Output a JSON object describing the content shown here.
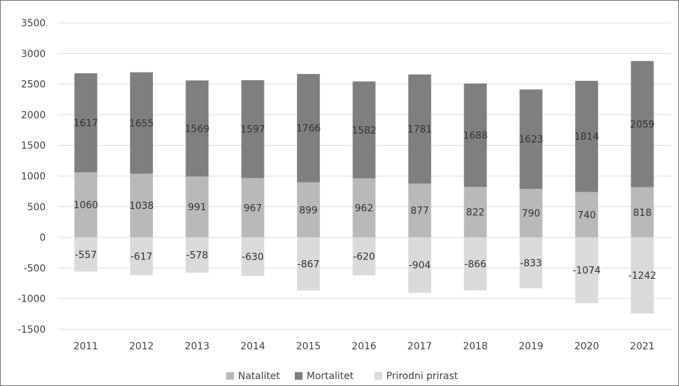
{
  "chart_data": {
    "type": "bar",
    "stacked": true,
    "categories": [
      "2011",
      "2012",
      "2013",
      "2014",
      "2015",
      "2016",
      "2017",
      "2018",
      "2019",
      "2020",
      "2021"
    ],
    "series": [
      {
        "name": "Natalitet",
        "values": [
          1060,
          1038,
          991,
          967,
          899,
          962,
          877,
          822,
          790,
          740,
          818
        ],
        "color": "#b9b9b9"
      },
      {
        "name": "Mortalitet",
        "values": [
          1617,
          1655,
          1569,
          1597,
          1766,
          1582,
          1781,
          1688,
          1623,
          1814,
          2059
        ],
        "color": "#7f7f7f"
      },
      {
        "name": "Prirodni prirast",
        "values": [
          -557,
          -617,
          -578,
          -630,
          -867,
          -620,
          -904,
          -866,
          -833,
          -1074,
          -1242
        ],
        "color": "#dadada"
      }
    ],
    "ylim": [
      -1500,
      3500
    ],
    "yticks": [
      "3500",
      "3000",
      "2500",
      "2000",
      "1500",
      "1000",
      "500",
      "0",
      "-500",
      "-1000",
      "-1500"
    ],
    "grid": true,
    "legend_position": "bottom",
    "title": "",
    "xlabel": "",
    "ylabel": ""
  }
}
